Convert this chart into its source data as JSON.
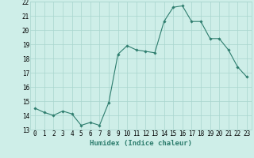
{
  "x": [
    0,
    1,
    2,
    3,
    4,
    5,
    6,
    7,
    8,
    9,
    10,
    11,
    12,
    13,
    14,
    15,
    16,
    17,
    18,
    19,
    20,
    21,
    22,
    23
  ],
  "y": [
    14.5,
    14.2,
    14.0,
    14.3,
    14.1,
    13.3,
    13.5,
    13.3,
    14.9,
    18.3,
    18.9,
    18.6,
    18.5,
    18.4,
    20.6,
    21.6,
    21.7,
    20.6,
    20.6,
    19.4,
    19.4,
    18.6,
    17.4,
    16.7
  ],
  "xlabel": "Humidex (Indice chaleur)",
  "xlim": [
    -0.5,
    23.5
  ],
  "ylim": [
    13.0,
    22.0
  ],
  "yticks": [
    13,
    14,
    15,
    16,
    17,
    18,
    19,
    20,
    21,
    22
  ],
  "xticks": [
    0,
    1,
    2,
    3,
    4,
    5,
    6,
    7,
    8,
    9,
    10,
    11,
    12,
    13,
    14,
    15,
    16,
    17,
    18,
    19,
    20,
    21,
    22,
    23
  ],
  "line_color": "#2e7d6e",
  "marker": "D",
  "marker_size": 1.8,
  "bg_color": "#ceeee8",
  "grid_color": "#a8d5ce",
  "xlabel_fontsize": 6.5,
  "tick_fontsize": 5.5
}
